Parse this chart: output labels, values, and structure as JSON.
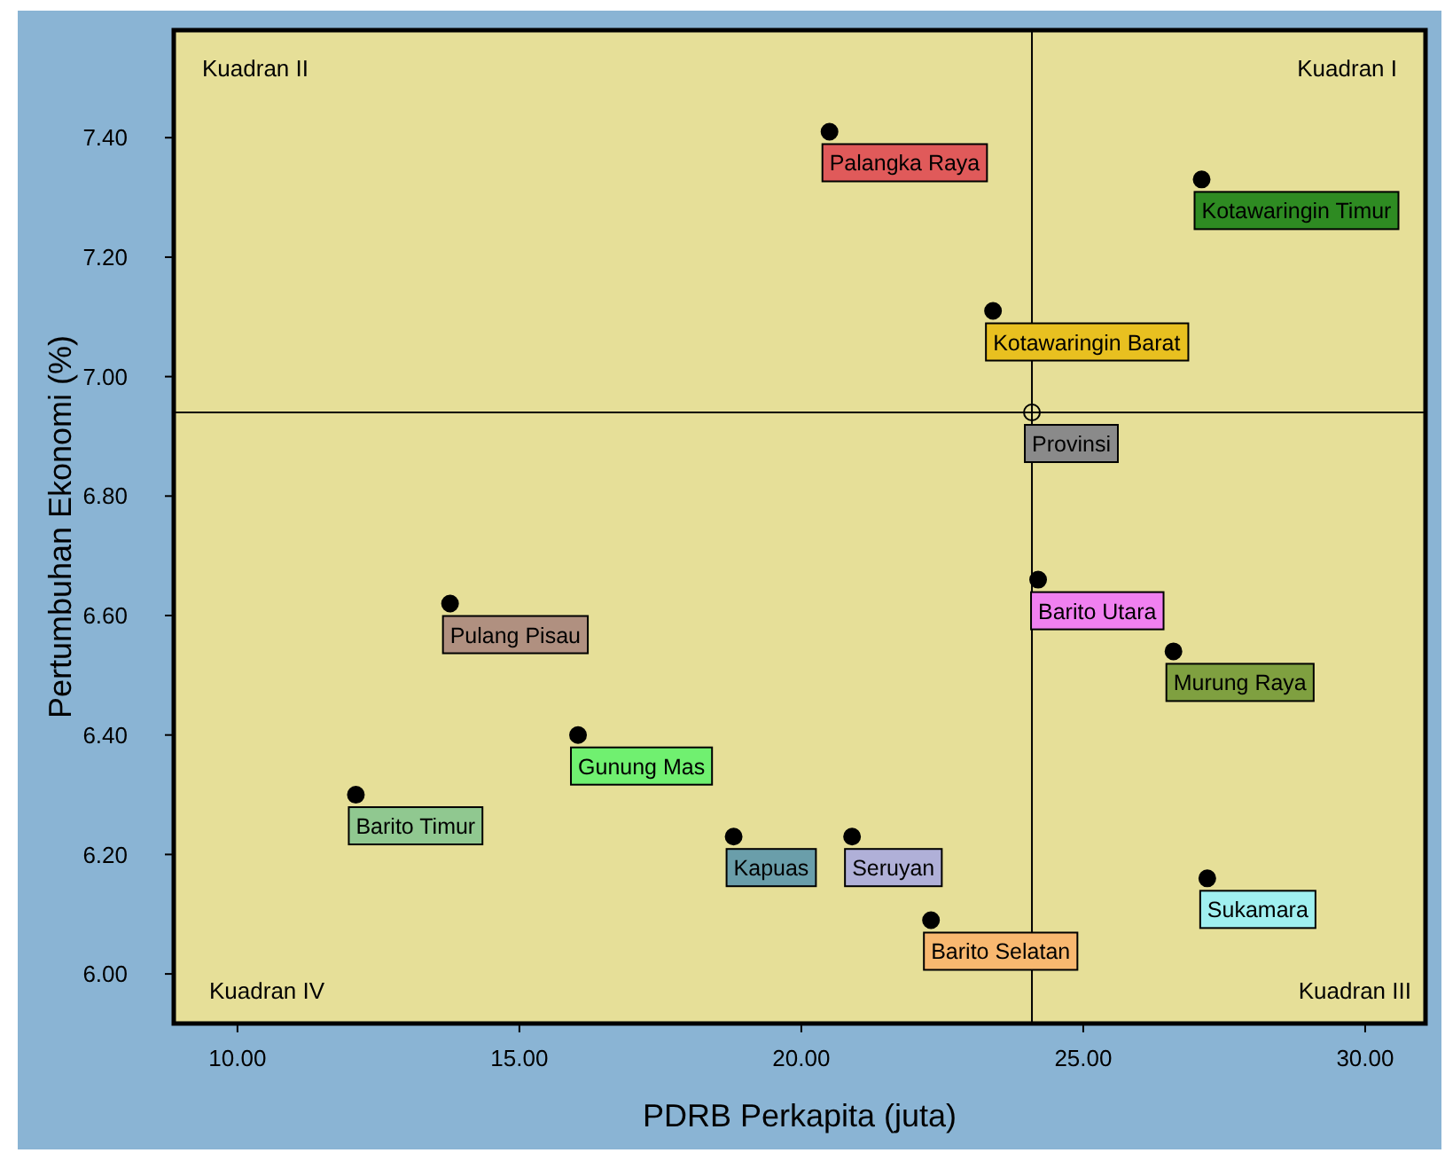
{
  "chart_data": {
    "type": "scatter",
    "xlabel": "PDRB Perkapita (juta)",
    "ylabel": "Pertumbuhan Ekonomi (%)",
    "xlim": [
      8.87,
      31.07
    ],
    "ylim": [
      5.917,
      7.58
    ],
    "xticks": [
      {
        "value": 10,
        "label": "10.00"
      },
      {
        "value": 15,
        "label": "15.00"
      },
      {
        "value": 20,
        "label": "20.00"
      },
      {
        "value": 25,
        "label": "25.00"
      },
      {
        "value": 30,
        "label": "30.00"
      }
    ],
    "yticks": [
      {
        "value": 6,
        "label": "6.00"
      },
      {
        "value": 6.2,
        "label": "6.20"
      },
      {
        "value": 6.4,
        "label": "6.40"
      },
      {
        "value": 6.6,
        "label": "6.60"
      },
      {
        "value": 6.8,
        "label": "6.80"
      },
      {
        "value": 7,
        "label": "7.00"
      },
      {
        "value": 7.2,
        "label": "7.20"
      },
      {
        "value": 7.4,
        "label": "7.40"
      }
    ],
    "grid": false,
    "marker": "circle",
    "series": [
      {
        "color": "#000000",
        "x": [
          20.5,
          27.1,
          23.4,
          24.2,
          13.77,
          26.6,
          16.04,
          12.1,
          18.8,
          20.9,
          27.2,
          22.3
        ],
        "values": [
          7.41,
          7.33,
          7.11,
          6.66,
          6.62,
          6.54,
          6.4,
          6.3,
          6.23,
          6.23,
          6.16,
          6.09
        ]
      },
      {
        "color": "#000000",
        "x": [
          24.09
        ],
        "values": [
          6.94
        ]
      }
    ],
    "ref_lines": [
      {
        "axis": "x",
        "value": 24.09,
        "color": "#000000"
      },
      {
        "axis": "y",
        "value": 6.94,
        "color": "#000000"
      }
    ],
    "annotations": [
      "Kuadran II",
      "Kuadran I",
      "Kuadran IV",
      "Kuadran III",
      {
        "text": "Palangka Raya",
        "x": 20.5,
        "y": 7.41
      },
      {
        "text": "Kotawaringin Timur",
        "x": 27.1,
        "y": 7.33
      },
      {
        "text": "Kotawaringin Barat",
        "x": 23.4,
        "y": 7.11
      },
      {
        "text": "Provinsi",
        "x": 24.09,
        "y": 6.94
      },
      {
        "text": "Barito Utara",
        "x": 24.2,
        "y": 6.66
      },
      {
        "text": "Pulang Pisau",
        "x": 13.77,
        "y": 6.62
      },
      {
        "text": "Murung Raya",
        "x": 26.6,
        "y": 6.54
      },
      {
        "text": "Gunung Mas",
        "x": 16.04,
        "y": 6.4
      },
      {
        "text": "Barito Timur",
        "x": 12.1,
        "y": 6.3
      },
      {
        "text": "Kapuas",
        "x": 18.8,
        "y": 6.23
      },
      {
        "text": "Seruyan",
        "x": 20.9,
        "y": 6.23
      },
      {
        "text": "Sukamara",
        "x": 27.2,
        "y": 6.16
      },
      {
        "text": "Barito Selatan",
        "x": 22.3,
        "y": 6.09
      }
    ]
  }
}
